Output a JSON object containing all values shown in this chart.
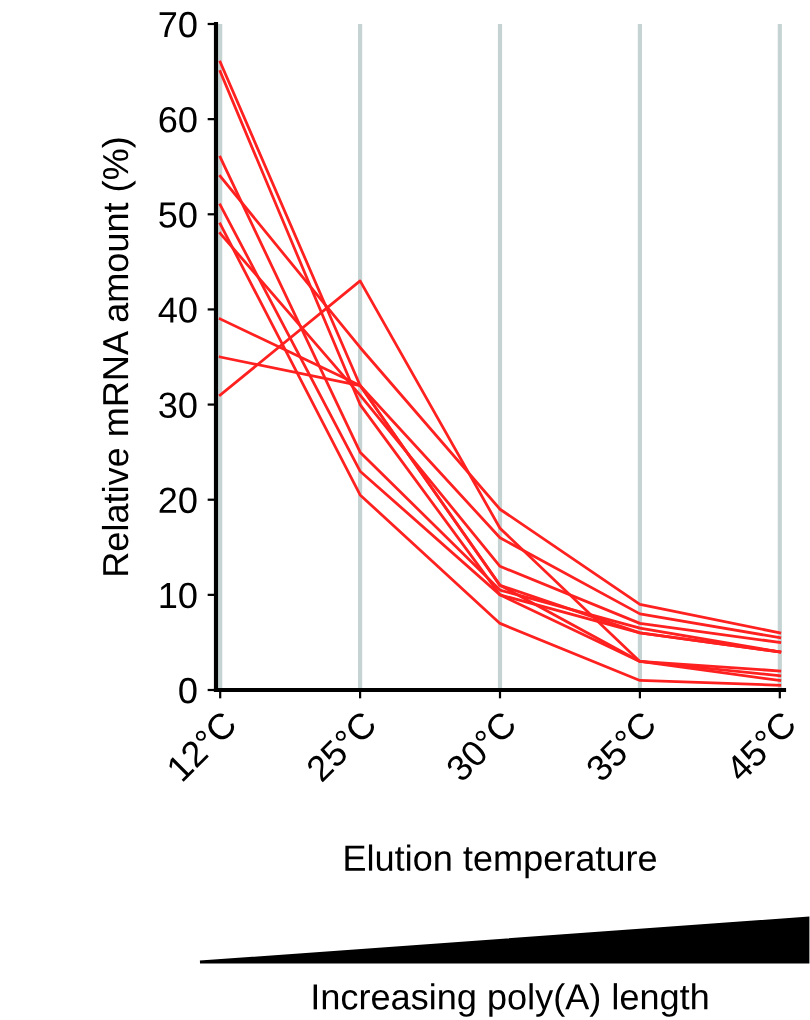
{
  "chart_data": {
    "type": "line",
    "xlabel": "Elution temperature",
    "ylabel": "Relative mRNA amount (%)",
    "categories": [
      "12°C",
      "25°C",
      "30°C",
      "35°C",
      "45°C"
    ],
    "series": [
      {
        "color": "#ff2020",
        "values": [
          66,
          32,
          11,
          3,
          1.5
        ]
      },
      {
        "color": "#ff2020",
        "values": [
          65,
          30,
          10,
          3,
          1
        ]
      },
      {
        "color": "#ff2020",
        "values": [
          56,
          25,
          10.5,
          6.5,
          4
        ]
      },
      {
        "color": "#ff2020",
        "values": [
          54,
          36,
          19,
          9,
          6
        ]
      },
      {
        "color": "#ff2020",
        "values": [
          51,
          23,
          10,
          6,
          4
        ]
      },
      {
        "color": "#ff2020",
        "values": [
          49,
          20.5,
          7,
          1,
          0.5
        ]
      },
      {
        "color": "#ff2020",
        "values": [
          48,
          31,
          13,
          7,
          5
        ]
      },
      {
        "color": "#ff2020",
        "values": [
          39,
          32,
          16,
          8,
          5.5
        ]
      },
      {
        "color": "#ff2020",
        "values": [
          35,
          32,
          11,
          6,
          4
        ]
      },
      {
        "color": "#ff2020",
        "values": [
          31,
          43,
          17,
          3,
          2
        ]
      }
    ],
    "ylim": [
      0,
      70
    ],
    "yticks": [
      0,
      10,
      20,
      30,
      40,
      50,
      60,
      70
    ],
    "grid": "x",
    "legend": false,
    "marker": "none",
    "line_style": "solid",
    "annotations": [
      "Increasing poly(A) length"
    ]
  }
}
